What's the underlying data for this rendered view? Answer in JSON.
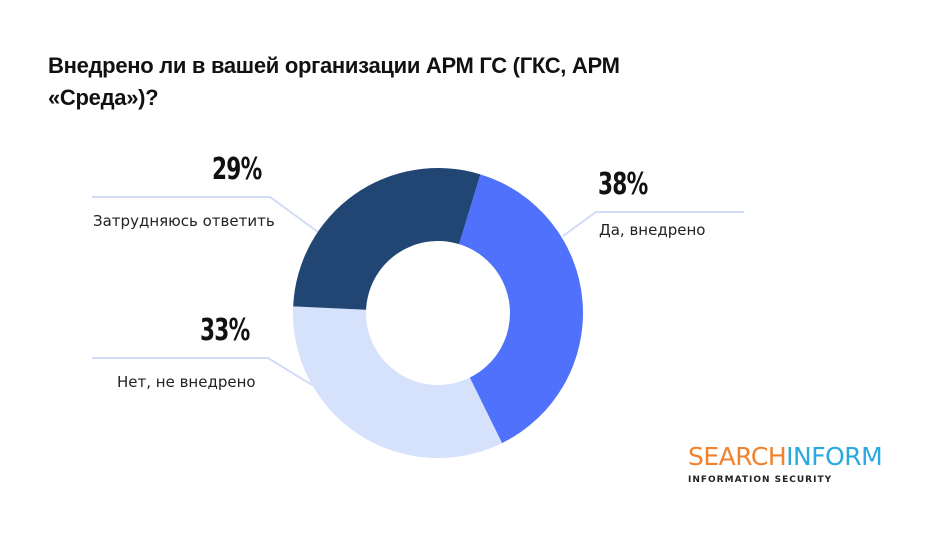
{
  "title": "Внедрено ли в вашей организации АРМ ГС (ГКС, АРМ «Среда»)?",
  "chart_data": {
    "type": "pie",
    "variant": "donut",
    "title": "Внедрено ли в вашей организации АРМ ГС (ГКС, АРМ «Среда»)?",
    "categories": [
      "Да, внедрено",
      "Нет, не внедрено",
      "Затрудняюсь ответить"
    ],
    "values": [
      38,
      33,
      29
    ],
    "unit": "%",
    "colors": [
      "#5071fb",
      "#d6e1fb",
      "#214673"
    ],
    "legend": "none (callout labels)"
  },
  "labels": {
    "yes": {
      "pct": "38%",
      "text": "Да, внедрено"
    },
    "no": {
      "pct": "33%",
      "text": "Нет, не внедрено"
    },
    "unsure": {
      "pct": "29%",
      "text": "Затрудняюсь ответить"
    }
  },
  "logo": {
    "part1": "SEARCH",
    "part2": "INFORM",
    "tagline": "INFORMATION SECURITY",
    "color1": "#f0822d",
    "color2": "#29a9e0"
  }
}
